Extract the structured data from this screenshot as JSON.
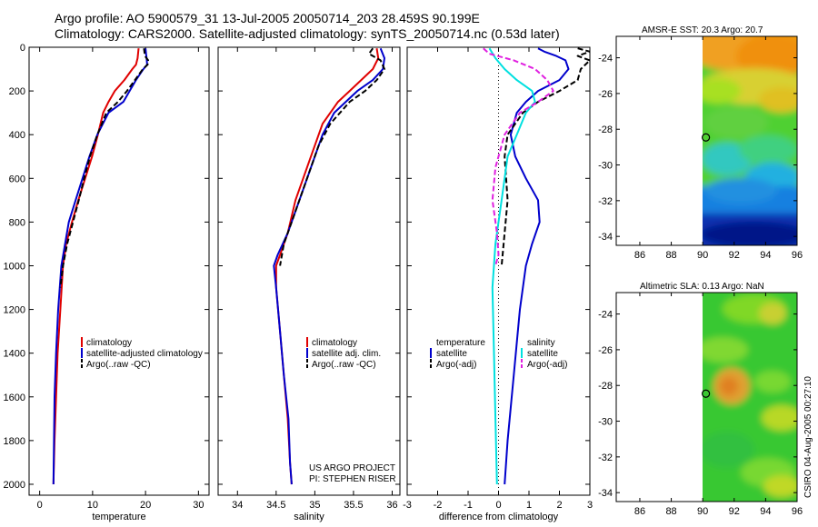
{
  "header": {
    "line1": "Argo profile: AO 5900579_31 13-Jul-2005 20050714_203 28.459S 90.199E",
    "line2": "Climatology: CARS2000. Satellite-adjusted climatology: synTS_20050714.nc (0.53d later)"
  },
  "credits": {
    "line1": "US ARGO PROJECT",
    "line2": "PI: STEPHEN RISER"
  },
  "side_label": "CSIRO 04-Aug-2005 00:27:10",
  "colors": {
    "climatology": "#e00000",
    "satellite": "#0000cc",
    "argo": "#000000",
    "temp_diff": "#0000cc",
    "sal_sat": "#00e0e0",
    "sal_argo": "#e020e0"
  },
  "chart_data": [
    {
      "id": "temperature",
      "type": "line",
      "xlabel": "temperature",
      "xlim": [
        -2,
        32
      ],
      "ylim": [
        0,
        2050
      ],
      "xticks": [
        0,
        10,
        20,
        30
      ],
      "yticks": [
        0,
        200,
        400,
        600,
        800,
        1000,
        1200,
        1400,
        1600,
        1800,
        2000
      ],
      "legend": [
        "climatology",
        "satellite-adjusted climatology",
        "Argo(..raw -QC)"
      ],
      "series": [
        {
          "name": "climatology",
          "color": "#e00000",
          "dash": false,
          "x": [
            18.7,
            18.5,
            18.2,
            17.5,
            16.0,
            14.2,
            13.0,
            12.0,
            11.0,
            9.9,
            8.6,
            7.3,
            6.1,
            5.0,
            4.4,
            3.9,
            3.4,
            3.1,
            2.8,
            2.6
          ],
          "y": [
            5,
            50,
            80,
            100,
            150,
            200,
            250,
            300,
            400,
            500,
            600,
            700,
            800,
            900,
            1000,
            1200,
            1400,
            1600,
            1800,
            2000
          ]
        },
        {
          "name": "satellite-adjusted climatology",
          "color": "#0000cc",
          "dash": false,
          "x": [
            20.0,
            20.1,
            20.2,
            20.3,
            19.6,
            18.2,
            17.0,
            15.8,
            13.0,
            10.9,
            9.4,
            8.1,
            6.8,
            5.5,
            4.8,
            4.1,
            3.5,
            3.1,
            2.8,
            2.6
          ],
          "y": [
            5,
            30,
            50,
            80,
            100,
            150,
            200,
            250,
            300,
            400,
            500,
            600,
            700,
            800,
            900,
            1000,
            1200,
            1400,
            1600,
            2000
          ]
        },
        {
          "name": "Argo(..raw -QC)",
          "color": "#000000",
          "dash": true,
          "x": [
            19.7,
            19.9,
            20.5,
            20.4,
            19.5,
            18.0,
            16.5,
            14.8,
            12.6,
            10.9,
            9.5,
            8.4,
            7.4,
            6.3,
            5.2,
            4.4,
            3.9
          ],
          "y": [
            5,
            40,
            60,
            80,
            100,
            150,
            200,
            250,
            300,
            400,
            500,
            600,
            700,
            800,
            900,
            1000,
            1100
          ]
        }
      ]
    },
    {
      "id": "salinity",
      "type": "line",
      "xlabel": "salinity",
      "xlim": [
        33.75,
        36.1
      ],
      "ylim": [
        0,
        2050
      ],
      "xticks": [
        34,
        34.5,
        35,
        35.5,
        36
      ],
      "yticks": [
        0,
        200,
        400,
        600,
        800,
        1000,
        1200,
        1400,
        1600,
        1800,
        2000
      ],
      "legend": [
        "climatology",
        "satellite adj. clim.",
        "Argo(..raw -QC)"
      ],
      "series": [
        {
          "name": "climatology",
          "color": "#e00000",
          "dash": false,
          "x": [
            35.8,
            35.82,
            35.75,
            35.6,
            35.45,
            35.3,
            35.1,
            34.95,
            34.75,
            34.65,
            34.55,
            34.5,
            34.5,
            34.55,
            34.6,
            34.65,
            34.68,
            34.7
          ],
          "y": [
            5,
            50,
            100,
            150,
            200,
            250,
            350,
            500,
            700,
            850,
            950,
            1000,
            1100,
            1300,
            1500,
            1700,
            1900,
            2000
          ]
        },
        {
          "name": "satellite adj. clim.",
          "color": "#0000cc",
          "dash": false,
          "x": [
            35.85,
            35.9,
            35.88,
            35.75,
            35.55,
            35.4,
            35.25,
            35.1,
            35.0,
            34.8,
            34.65,
            34.52,
            34.47,
            34.5,
            34.55,
            34.6,
            34.66,
            34.68,
            34.7
          ],
          "y": [
            5,
            50,
            100,
            150,
            200,
            250,
            300,
            400,
            500,
            700,
            850,
            950,
            1000,
            1100,
            1300,
            1500,
            1700,
            1900,
            2000
          ]
        },
        {
          "name": "Argo(..raw -QC)",
          "color": "#000000",
          "dash": true,
          "x": [
            35.75,
            35.7,
            35.85,
            35.9,
            35.8,
            35.65,
            35.45,
            35.2,
            35.05,
            34.95,
            34.8,
            34.7,
            34.6,
            34.55
          ],
          "y": [
            5,
            30,
            60,
            100,
            150,
            200,
            250,
            350,
            450,
            550,
            700,
            800,
            900,
            1000
          ]
        }
      ]
    },
    {
      "id": "difference",
      "type": "line",
      "xlabel": "difference from climatology",
      "xlim": [
        -3,
        3
      ],
      "ylim": [
        0,
        2050
      ],
      "xticks": [
        -3,
        -2,
        -1,
        0,
        1,
        2,
        3
      ],
      "yticks": [
        0,
        200,
        400,
        600,
        800,
        1000,
        1200,
        1400,
        1600,
        1800,
        2000
      ],
      "legend_temperature": {
        "title": "temperature",
        "items": [
          "satellite",
          "Argo(-adj)"
        ]
      },
      "legend_salinity": {
        "title": "salinity",
        "items": [
          "satellite",
          "Argo(-adj)"
        ]
      },
      "series": [
        {
          "name": "temperature satellite",
          "color": "#0000cc",
          "dash": false,
          "x": [
            1.3,
            1.5,
            1.9,
            2.2,
            2.3,
            2.0,
            1.3,
            0.9,
            0.6,
            0.4,
            0.55,
            0.9,
            1.3,
            1.35,
            1.1,
            0.9,
            0.7,
            0.5,
            0.3,
            0.2
          ],
          "y": [
            5,
            20,
            40,
            60,
            100,
            150,
            200,
            250,
            300,
            400,
            500,
            600,
            700,
            800,
            900,
            1000,
            1200,
            1500,
            1800,
            2000
          ]
        },
        {
          "name": "temperature Argo(-adj)",
          "color": "#000000",
          "dash": true,
          "x": [
            2.6,
            3.0,
            2.6,
            3.0,
            2.7,
            2.6,
            2.0,
            1.3,
            0.8,
            0.3,
            0.2,
            0.3,
            0.2,
            0.1
          ],
          "y": [
            5,
            20,
            40,
            60,
            100,
            150,
            200,
            250,
            300,
            400,
            500,
            700,
            850,
            1000
          ]
        },
        {
          "name": "salinity satellite",
          "color": "#00e0e0",
          "dash": false,
          "x": [
            -0.3,
            -0.1,
            0.2,
            0.6,
            1.1,
            1.2,
            0.9,
            0.6,
            0.3,
            0.1,
            -0.1,
            -0.2,
            -0.15,
            -0.1,
            -0.05
          ],
          "y": [
            5,
            50,
            100,
            150,
            200,
            250,
            300,
            400,
            500,
            700,
            900,
            1100,
            1400,
            1700,
            2000
          ]
        },
        {
          "name": "salinity Argo(-adj)",
          "color": "#e020e0",
          "dash": true,
          "x": [
            -0.5,
            -0.3,
            0.5,
            1.2,
            1.6,
            1.8,
            1.3,
            0.7,
            0.2,
            -0.1,
            -0.2,
            -0.05,
            0.0,
            -0.1
          ],
          "y": [
            5,
            30,
            60,
            100,
            150,
            200,
            250,
            300,
            400,
            550,
            700,
            850,
            950,
            1000
          ]
        }
      ]
    },
    {
      "id": "sst_map",
      "type": "heatmap",
      "title": "AMSR-E SST: 20.3 Argo: 20.7",
      "xlim": [
        84.5,
        96
      ],
      "ylim": [
        -34.5,
        -22.8
      ],
      "xticks": [
        86,
        88,
        90,
        92,
        94,
        96
      ],
      "yticks": [
        -24,
        -26,
        -28,
        -30,
        -32,
        -34
      ],
      "data_lon_min": 90,
      "marker": {
        "lon": 90.199,
        "lat": -28.459
      }
    },
    {
      "id": "sla_map",
      "type": "heatmap",
      "title": "Altimetric SLA: 0.13 Argo: NaN",
      "xlim": [
        84.5,
        96
      ],
      "ylim": [
        -34.5,
        -22.8
      ],
      "xticks": [
        86,
        88,
        90,
        92,
        94,
        96
      ],
      "yticks": [
        -24,
        -26,
        -28,
        -30,
        -32,
        -34
      ],
      "data_lon_min": 90,
      "marker": {
        "lon": 90.199,
        "lat": -28.459
      }
    }
  ]
}
